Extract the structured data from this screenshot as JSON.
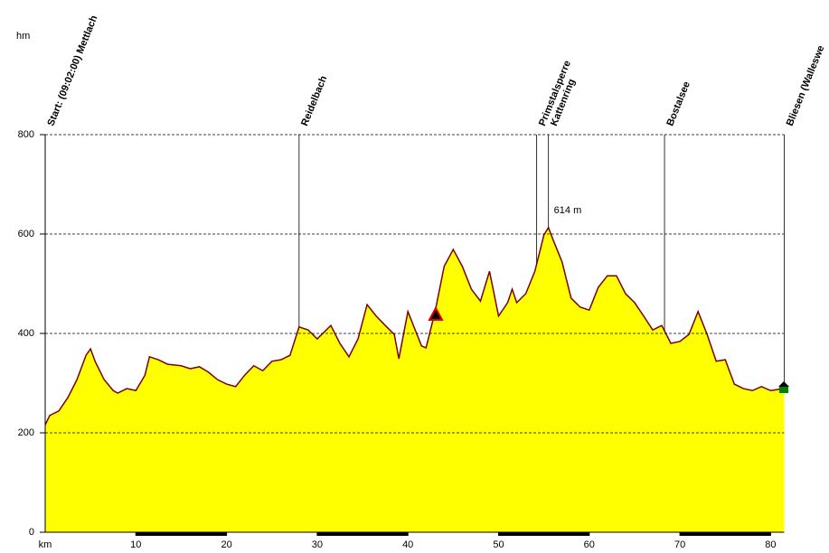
{
  "chart_data": {
    "type": "area",
    "y_unit": "hm",
    "x_unit": "km",
    "x": [
      0,
      0.5,
      1.5,
      2.5,
      3.5,
      4.5,
      5,
      5.5,
      6.5,
      7.5,
      8,
      9,
      10,
      11,
      11.5,
      12.5,
      13.5,
      15,
      16,
      17,
      18,
      19,
      20,
      21,
      22,
      23,
      24,
      25,
      26,
      27,
      28,
      29,
      30,
      31.5,
      32.5,
      33.5,
      34.5,
      35.5,
      36.5,
      37.5,
      38.5,
      39,
      40,
      41,
      41.5,
      42,
      43,
      44,
      45,
      46,
      47,
      48,
      49,
      50,
      51,
      51.5,
      52,
      53,
      54,
      55,
      55.5,
      56,
      57,
      58,
      59,
      60,
      61,
      62,
      63,
      64,
      65,
      66,
      67,
      68,
      69,
      70,
      71,
      72,
      73,
      74,
      75,
      76,
      77,
      78,
      79,
      80,
      81.5
    ],
    "y": [
      216,
      235,
      244,
      271,
      307,
      356,
      369,
      344,
      307,
      285,
      280,
      289,
      285,
      316,
      353,
      347,
      338,
      335,
      329,
      333,
      322,
      307,
      298,
      293,
      316,
      335,
      325,
      344,
      347,
      356,
      413,
      407,
      389,
      416,
      380,
      353,
      389,
      458,
      435,
      416,
      398,
      349,
      444,
      398,
      375,
      371,
      444,
      535,
      569,
      535,
      489,
      465,
      525,
      435,
      462,
      489,
      462,
      480,
      525,
      598,
      613,
      589,
      544,
      471,
      453,
      447,
      493,
      516,
      516,
      480,
      462,
      435,
      407,
      416,
      380,
      384,
      398,
      444,
      398,
      344,
      347,
      298,
      289,
      285,
      293,
      285,
      289
    ],
    "fill_color": "#ffff00",
    "line_color": "#7a0000",
    "xlim": [
      0,
      81.5
    ],
    "ylim": [
      0,
      800
    ],
    "xticks": [
      10,
      20,
      30,
      40,
      50,
      60,
      70,
      80
    ],
    "yticks": [
      0,
      200,
      400,
      600,
      800
    ],
    "grid": true,
    "waypoints": [
      {
        "label": "Start: (09:02:00) Mettlach",
        "km": 0
      },
      {
        "label": "Reidelbach",
        "km": 28
      },
      {
        "label": "Primstalsperre",
        "km": 54.2
      },
      {
        "label": "Kattenring",
        "km": 55.5
      },
      {
        "label": "Bostalsee",
        "km": 68.3
      },
      {
        "label": "Bliesen (Walleswe",
        "km": 81.5
      }
    ],
    "annotations": [
      {
        "text": "614 m",
        "x": 55.5,
        "y": 614
      }
    ]
  }
}
